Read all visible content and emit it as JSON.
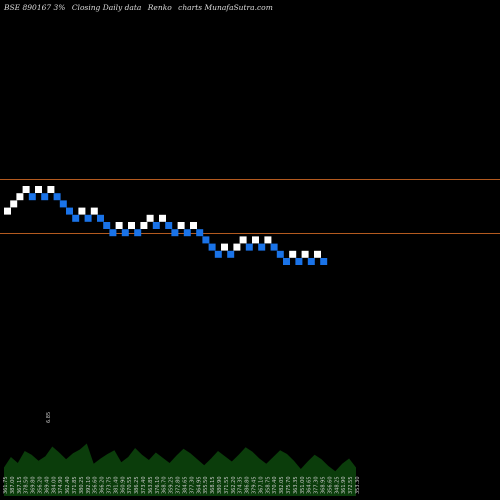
{
  "header": {
    "symbol": "BSE 890167 3%",
    "series_label": "Closing Daily data",
    "chart_label": "Renko",
    "site": "charts MunafaSutra.com"
  },
  "colors": {
    "background": "#000000",
    "up_brick": "#ffffff",
    "down_brick": "#1a73e8",
    "level_line": "#b35a1f",
    "volume_fill": "#0b3d0b",
    "volume_text": "#cccccc"
  },
  "chart_data": {
    "type": "renko",
    "brick_count": 52,
    "reference_lines": 2,
    "bricks": [
      {
        "dir": "up",
        "level": 8
      },
      {
        "dir": "up",
        "level": 9
      },
      {
        "dir": "up",
        "level": 10
      },
      {
        "dir": "up",
        "level": 11
      },
      {
        "dir": "down",
        "level": 10
      },
      {
        "dir": "up",
        "level": 11
      },
      {
        "dir": "down",
        "level": 10
      },
      {
        "dir": "up",
        "level": 11
      },
      {
        "dir": "down",
        "level": 10
      },
      {
        "dir": "down",
        "level": 9
      },
      {
        "dir": "down",
        "level": 8
      },
      {
        "dir": "down",
        "level": 7
      },
      {
        "dir": "up",
        "level": 8
      },
      {
        "dir": "down",
        "level": 7
      },
      {
        "dir": "up",
        "level": 8
      },
      {
        "dir": "down",
        "level": 7
      },
      {
        "dir": "down",
        "level": 6
      },
      {
        "dir": "down",
        "level": 5
      },
      {
        "dir": "up",
        "level": 6
      },
      {
        "dir": "down",
        "level": 5
      },
      {
        "dir": "up",
        "level": 6
      },
      {
        "dir": "down",
        "level": 5
      },
      {
        "dir": "up",
        "level": 6
      },
      {
        "dir": "up",
        "level": 7
      },
      {
        "dir": "down",
        "level": 6
      },
      {
        "dir": "up",
        "level": 7
      },
      {
        "dir": "down",
        "level": 6
      },
      {
        "dir": "down",
        "level": 5
      },
      {
        "dir": "up",
        "level": 6
      },
      {
        "dir": "down",
        "level": 5
      },
      {
        "dir": "up",
        "level": 6
      },
      {
        "dir": "down",
        "level": 5
      },
      {
        "dir": "down",
        "level": 4
      },
      {
        "dir": "down",
        "level": 3
      },
      {
        "dir": "down",
        "level": 2
      },
      {
        "dir": "up",
        "level": 3
      },
      {
        "dir": "down",
        "level": 2
      },
      {
        "dir": "up",
        "level": 3
      },
      {
        "dir": "up",
        "level": 4
      },
      {
        "dir": "down",
        "level": 3
      },
      {
        "dir": "up",
        "level": 4
      },
      {
        "dir": "down",
        "level": 3
      },
      {
        "dir": "up",
        "level": 4
      },
      {
        "dir": "down",
        "level": 3
      },
      {
        "dir": "down",
        "level": 2
      },
      {
        "dir": "down",
        "level": 1
      },
      {
        "dir": "up",
        "level": 2
      },
      {
        "dir": "down",
        "level": 1
      },
      {
        "dir": "up",
        "level": 2
      },
      {
        "dir": "down",
        "level": 1
      },
      {
        "dir": "up",
        "level": 2
      },
      {
        "dir": "down",
        "level": 1
      }
    ],
    "volume": {
      "labels": [
        "361.75",
        "387.00",
        "367.15",
        "378.50",
        "369.80",
        "356.20",
        "369.40",
        "384.00",
        "374.90",
        "362.40",
        "371.85",
        "380.25",
        "392.10",
        "356.60",
        "366.20",
        "373.75",
        "381.40",
        "360.90",
        "370.55",
        "386.25",
        "373.40",
        "363.85",
        "376.10",
        "368.70",
        "359.25",
        "372.80",
        "384.65",
        "377.30",
        "364.95",
        "355.50",
        "368.15",
        "380.90",
        "371.55",
        "362.20",
        "374.35",
        "386.80",
        "379.45",
        "367.10",
        "358.75",
        "370.40",
        "382.05",
        "375.70",
        "363.35",
        "351.00",
        "364.65",
        "377.30",
        "368.95",
        "356.60",
        "348.25",
        "361.90",
        "372.55",
        "353.30"
      ],
      "peak_label": "6.85",
      "heights": [
        0.38,
        0.52,
        0.44,
        0.6,
        0.55,
        0.47,
        0.53,
        0.66,
        0.58,
        0.49,
        0.57,
        0.62,
        0.7,
        0.43,
        0.5,
        0.56,
        0.61,
        0.45,
        0.52,
        0.64,
        0.55,
        0.48,
        0.58,
        0.51,
        0.44,
        0.54,
        0.63,
        0.57,
        0.49,
        0.41,
        0.5,
        0.6,
        0.53,
        0.46,
        0.55,
        0.65,
        0.59,
        0.5,
        0.43,
        0.52,
        0.61,
        0.56,
        0.47,
        0.36,
        0.46,
        0.55,
        0.49,
        0.4,
        0.33,
        0.43,
        0.5,
        0.38
      ]
    }
  }
}
